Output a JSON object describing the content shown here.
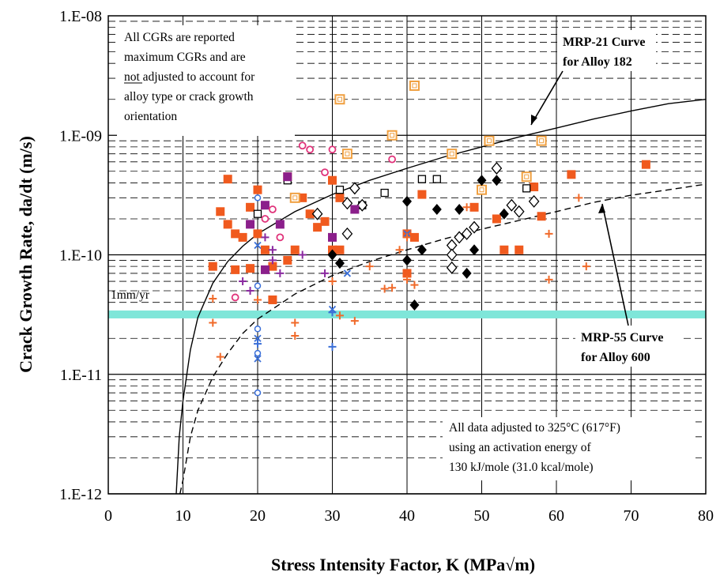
{
  "chart_data": {
    "type": "scatter",
    "title": "",
    "xlabel": "Stress Intensity Factor, K (MPa√m)",
    "ylabel": "Crack Growth Rate, da/dt (m/s)",
    "x_ticks": [
      "0",
      "10",
      "20",
      "30",
      "40",
      "50",
      "60",
      "70",
      "80"
    ],
    "y_ticks": [
      "1.E-12",
      "1.E-11",
      "1.E-10",
      "1.E-09",
      "1.E-08"
    ],
    "xlim": [
      0,
      80
    ],
    "ylim": [
      1e-12,
      1e-08
    ],
    "y_scale": "log",
    "grid": true,
    "colors": {
      "curve": "#000000",
      "highlight_band": "#7fe6d9",
      "red_square": "#f05a1e",
      "orange_open_square": "#f0a040",
      "black_diamond": "#000000",
      "purple_square": "#8b1f8b",
      "pink_circle": "#e0337a",
      "blue_circle": "#3a6fd8",
      "orange_plus": "#f06a2a",
      "purple_plus": "#8a2aa0"
    },
    "reference_line": {
      "label": "1mm/yr",
      "y": 3.17e-11
    },
    "annotations": {
      "note_top_left": [
        "All CGRs are reported",
        "maximum CGRs and are",
        "not adjusted to account for",
        "alloy type or crack growth",
        "orientation"
      ],
      "note_underlined_word": "not",
      "note_bottom_right": [
        "All data adjusted to 325°C (617°F)",
        "using an activation energy of",
        "130 kJ/mole (31.0 kcal/mole)"
      ],
      "curve_label_1": [
        "MRP-21 Curve",
        "for Alloy 182"
      ],
      "curve_label_2": [
        "MRP-55 Curve",
        "for Alloy 600"
      ]
    },
    "series": [
      {
        "marker": "red_square",
        "points": [
          [
            14,
            8e-11
          ],
          [
            15,
            2.3e-10
          ],
          [
            16,
            1.8e-10
          ],
          [
            16,
            4.3e-10
          ],
          [
            17,
            1.5e-10
          ],
          [
            17,
            7.5e-11
          ],
          [
            18,
            1.4e-10
          ],
          [
            19,
            7.7e-11
          ],
          [
            19,
            2.5e-10
          ],
          [
            20,
            3.5e-10
          ],
          [
            20,
            1.5e-10
          ],
          [
            21,
            1.1e-10
          ],
          [
            22,
            8e-11
          ],
          [
            22,
            4.2e-11
          ],
          [
            24,
            9e-11
          ],
          [
            24,
            4.5e-10
          ],
          [
            25,
            1.1e-10
          ],
          [
            26,
            3e-10
          ],
          [
            27,
            2.2e-10
          ],
          [
            28,
            1.7e-10
          ],
          [
            29,
            1.9e-10
          ],
          [
            30,
            4.2e-10
          ],
          [
            30,
            1.1e-10
          ],
          [
            31,
            1.1e-10
          ],
          [
            31,
            3e-10
          ],
          [
            40,
            7e-11
          ],
          [
            40,
            1.5e-10
          ],
          [
            41,
            1.4e-10
          ],
          [
            42,
            3.2e-10
          ],
          [
            49,
            2.5e-10
          ],
          [
            52,
            2e-10
          ],
          [
            53,
            1.1e-10
          ],
          [
            55,
            1.1e-10
          ],
          [
            57,
            3.7e-10
          ],
          [
            58,
            2.1e-10
          ],
          [
            62,
            4.7e-10
          ],
          [
            72,
            5.7e-10
          ]
        ]
      },
      {
        "marker": "orange_open_square",
        "points": [
          [
            25,
            3e-10
          ],
          [
            31,
            2e-09
          ],
          [
            32,
            7e-10
          ],
          [
            38,
            1e-09
          ],
          [
            41,
            2.6e-09
          ],
          [
            46,
            7e-10
          ],
          [
            50,
            3.5e-10
          ],
          [
            51,
            9e-10
          ],
          [
            56,
            4.5e-10
          ],
          [
            58,
            9e-10
          ]
        ]
      },
      {
        "marker": "open_square",
        "points": [
          [
            20,
            2.2e-10
          ],
          [
            24,
            4.2e-10
          ],
          [
            31,
            3.5e-10
          ],
          [
            34,
            2.6e-10
          ],
          [
            37,
            3.3e-10
          ],
          [
            42,
            4.3e-10
          ],
          [
            44,
            4.3e-10
          ],
          [
            56,
            3.6e-10
          ]
        ]
      },
      {
        "marker": "black_diamond",
        "points": [
          [
            30,
            1e-10
          ],
          [
            31,
            8.5e-11
          ],
          [
            40,
            9e-11
          ],
          [
            40,
            2.8e-10
          ],
          [
            41,
            3.8e-11
          ],
          [
            42,
            1.1e-10
          ],
          [
            44,
            2.4e-10
          ],
          [
            47,
            2.4e-10
          ],
          [
            48,
            7e-11
          ],
          [
            49,
            1.1e-10
          ],
          [
            50,
            4.2e-10
          ],
          [
            52,
            4.2e-10
          ],
          [
            53,
            2.2e-10
          ]
        ]
      },
      {
        "marker": "open_diamond",
        "points": [
          [
            28,
            2.2e-10
          ],
          [
            32,
            2.7e-10
          ],
          [
            32,
            1.5e-10
          ],
          [
            33,
            3.6e-10
          ],
          [
            34,
            2.6e-10
          ],
          [
            46,
            1.2e-10
          ],
          [
            47,
            1.4e-10
          ],
          [
            46,
            1e-10
          ],
          [
            46,
            7.8e-11
          ],
          [
            48,
            1.5e-10
          ],
          [
            49,
            1.7e-10
          ],
          [
            52,
            5.3e-10
          ],
          [
            54,
            2.6e-10
          ],
          [
            55,
            2.3e-10
          ],
          [
            57,
            2.8e-10
          ]
        ]
      },
      {
        "marker": "purple_square",
        "points": [
          [
            19,
            1.8e-10
          ],
          [
            21,
            2.6e-10
          ],
          [
            21,
            7.5e-11
          ],
          [
            23,
            1.8e-10
          ],
          [
            24,
            4.5e-10
          ],
          [
            30,
            1.4e-10
          ],
          [
            33,
            2.4e-10
          ]
        ]
      },
      {
        "marker": "pink_circle",
        "points": [
          [
            17,
            4.4e-11
          ],
          [
            21,
            2e-10
          ],
          [
            22,
            2.4e-10
          ],
          [
            23,
            1.4e-10
          ],
          [
            26,
            8.2e-10
          ],
          [
            27,
            7.6e-10
          ],
          [
            29,
            4.9e-10
          ],
          [
            30,
            7.6e-10
          ],
          [
            38,
            6.3e-10
          ]
        ]
      },
      {
        "marker": "blue_circle",
        "points": [
          [
            20,
            5.5e-11
          ],
          [
            20,
            2.4e-11
          ],
          [
            20,
            1.5e-11
          ],
          [
            20,
            7e-12
          ],
          [
            20,
            3e-10
          ]
        ]
      },
      {
        "marker": "blue_x",
        "points": [
          [
            20,
            1.2e-10
          ],
          [
            20,
            2e-11
          ],
          [
            20,
            1.35e-11
          ],
          [
            30,
            3.5e-11
          ],
          [
            32,
            7e-11
          ],
          [
            40,
            1.5e-10
          ]
        ]
      },
      {
        "marker": "blue_plus",
        "points": [
          [
            20,
            1.8e-11
          ],
          [
            30,
            3.3e-11
          ],
          [
            30,
            1.7e-11
          ]
        ]
      },
      {
        "marker": "orange_plus",
        "points": [
          [
            14,
            4.3e-11
          ],
          [
            14,
            2.7e-11
          ],
          [
            15,
            1.4e-11
          ],
          [
            20,
            4.2e-11
          ],
          [
            25,
            2.7e-11
          ],
          [
            25,
            2.1e-11
          ],
          [
            30,
            6e-11
          ],
          [
            31,
            3.1e-11
          ],
          [
            33,
            2.8e-11
          ],
          [
            35,
            8e-11
          ],
          [
            37,
            5.2e-11
          ],
          [
            38,
            5.3e-11
          ],
          [
            39,
            1.1e-10
          ],
          [
            40,
            6.2e-11
          ],
          [
            40,
            1.4e-10
          ],
          [
            41,
            5.6e-11
          ],
          [
            48,
            2.5e-10
          ],
          [
            59,
            1.5e-10
          ],
          [
            59,
            6.2e-11
          ],
          [
            63,
            3e-10
          ],
          [
            64,
            8e-11
          ]
        ]
      },
      {
        "marker": "purple_plus",
        "points": [
          [
            18,
            6e-11
          ],
          [
            19,
            5e-11
          ],
          [
            21,
            1.4e-10
          ],
          [
            22,
            1.1e-10
          ],
          [
            22,
            9e-11
          ],
          [
            23,
            7e-11
          ],
          [
            26,
            1e-10
          ],
          [
            29,
            7e-11
          ]
        ]
      }
    ],
    "curves": [
      {
        "name": "MRP-21 Curve for Alloy 182",
        "style": "solid",
        "points": [
          [
            9.1,
            1e-12
          ],
          [
            9.5,
            3e-12
          ],
          [
            10,
            6e-12
          ],
          [
            11,
            1.6e-11
          ],
          [
            12,
            3e-11
          ],
          [
            14,
            5.8e-11
          ],
          [
            16,
            8.8e-11
          ],
          [
            18,
            1.18e-10
          ],
          [
            20,
            1.5e-10
          ],
          [
            25,
            2.3e-10
          ],
          [
            30,
            3.2e-10
          ],
          [
            35,
            4.2e-10
          ],
          [
            40,
            5.3e-10
          ],
          [
            45,
            6.6e-10
          ],
          [
            50,
            8e-10
          ],
          [
            55,
            9.7e-10
          ],
          [
            60,
            1.15e-09
          ],
          [
            65,
            1.37e-09
          ],
          [
            70,
            1.6e-09
          ],
          [
            75,
            1.84e-09
          ],
          [
            80,
            2e-09
          ]
        ]
      },
      {
        "name": "MRP-55 Curve for Alloy 600",
        "style": "dashed",
        "points": [
          [
            9.6,
            1e-12
          ],
          [
            10,
            1.3e-12
          ],
          [
            11,
            3e-12
          ],
          [
            12,
            5e-12
          ],
          [
            14,
            9.5e-12
          ],
          [
            16,
            1.5e-11
          ],
          [
            18,
            2.2e-11
          ],
          [
            20,
            2.9e-11
          ],
          [
            25,
            4.7e-11
          ],
          [
            30,
            6.7e-11
          ],
          [
            35,
            8.8e-11
          ],
          [
            40,
            1.1e-10
          ],
          [
            45,
            1.36e-10
          ],
          [
            50,
            1.64e-10
          ],
          [
            55,
            1.94e-10
          ],
          [
            60,
            2.3e-10
          ],
          [
            65,
            2.75e-10
          ],
          [
            70,
            3.15e-10
          ],
          [
            75,
            3.5e-10
          ],
          [
            80,
            3.9e-10
          ]
        ]
      }
    ]
  }
}
